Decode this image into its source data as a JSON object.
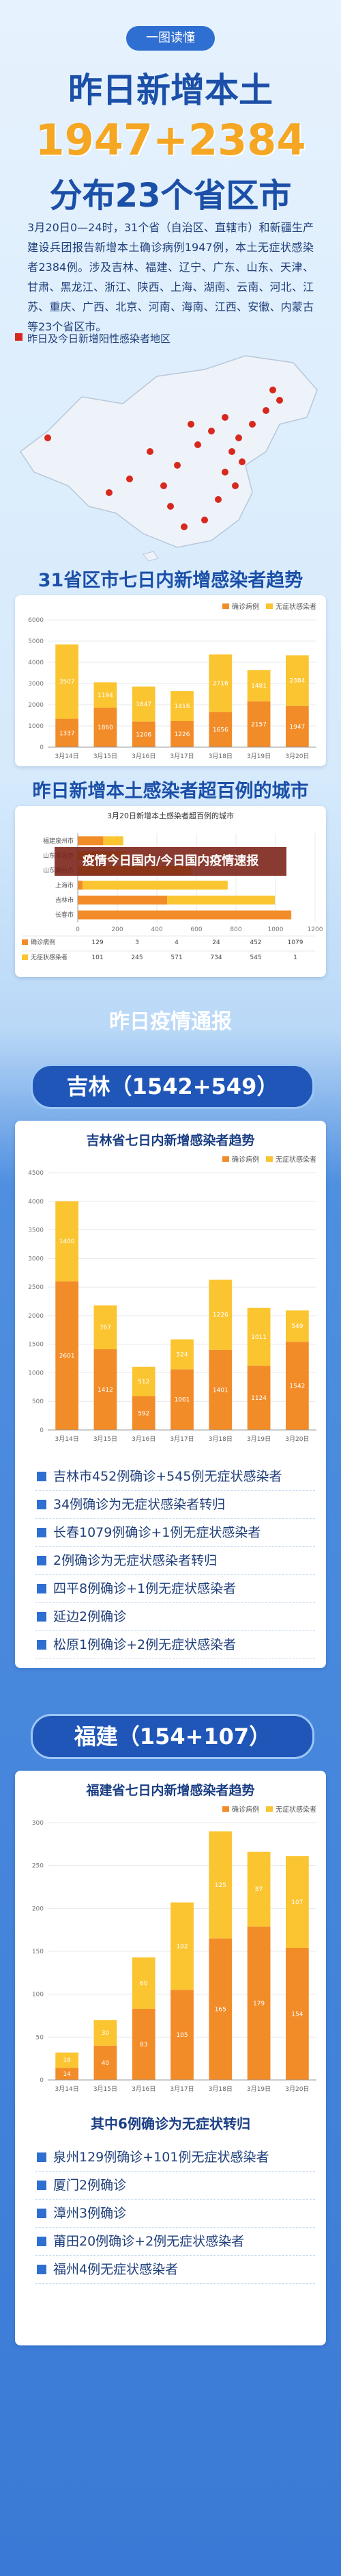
{
  "header": {
    "badge": "一图读懂",
    "title": "昨日新增本土",
    "numbers": "1947+2384",
    "subtitle": "分布23个省区市",
    "summary": "3月20日0—24时，31个省（自治区、直辖市）和新疆生产建设兵团报告新增本土确诊病例1947例，本土无症状感染者2384例。涉及吉林、福建、辽宁、广东、山东、天津、甘肃、黑龙江、浙江、陕西、上海、湖南、云南、河北、江苏、重庆、广西、北京、河南、海南、江西、安徽、内蒙古等23个省区市。"
  },
  "map": {
    "label": "昨日及今日新增阳性感染者地区"
  },
  "sections": {
    "national": "31省区市七日内新增感染者趋势",
    "cities": "昨日新增本土感染者超百例的城市",
    "report": "昨日疫情通报"
  },
  "overlay": "疫情今日国内/今日国内疫情速报",
  "chart_data": [
    {
      "type": "bar",
      "stacked": true,
      "grid": true,
      "categories": [
        "3月14日",
        "3月15日",
        "3月16日",
        "3月17日",
        "3月18日",
        "3月19日",
        "3月20日"
      ],
      "series": [
        {
          "name": "确诊病例",
          "color": "#f28c28",
          "values": [
            1337,
            1860,
            1206,
            1226,
            1656,
            2157,
            1947
          ]
        },
        {
          "name": "无症状感染者",
          "color": "#fbc531",
          "values": [
            3507,
            1194,
            1647,
            1416,
            2716,
            1481,
            2384
          ]
        }
      ],
      "ylim": [
        0,
        6000
      ],
      "yticks": [
        0,
        1000,
        2000,
        3000,
        4000,
        5000,
        6000
      ]
    },
    {
      "type": "hbar",
      "stacked": true,
      "grid": true,
      "title": "3月20日新增本土感染者超百例的城市",
      "categories": [
        "福建泉州市",
        "山东青岛市",
        "山东烟台市",
        "上海市",
        "吉林市",
        "长春市"
      ],
      "series": [
        {
          "name": "确诊病例",
          "color": "#f28c28",
          "values": [
            129,
            3,
            4,
            24,
            452,
            1079
          ]
        },
        {
          "name": "无症状感染者",
          "color": "#fbc531",
          "values": [
            101,
            245,
            571,
            734,
            545,
            1
          ]
        }
      ],
      "xlim": [
        0,
        1200
      ],
      "xticks": [
        0,
        200,
        400,
        600,
        800,
        1000,
        1200
      ]
    },
    {
      "type": "bar",
      "stacked": true,
      "grid": true,
      "title": "吉林省七日内新增感染者趋势",
      "categories": [
        "3月14日",
        "3月15日",
        "3月16日",
        "3月17日",
        "3月18日",
        "3月19日",
        "3月20日"
      ],
      "series": [
        {
          "name": "确诊病例",
          "color": "#f28c28",
          "values": [
            2601,
            1412,
            592,
            1061,
            1401,
            1124,
            1542
          ]
        },
        {
          "name": "无症状感染者",
          "color": "#fbc531",
          "values": [
            1400,
            767,
            512,
            524,
            1226,
            1011,
            549
          ]
        }
      ],
      "ylim": [
        0,
        4500
      ],
      "yticks": [
        0,
        500,
        1000,
        1500,
        2000,
        2500,
        3000,
        3500,
        4000,
        4500
      ]
    },
    {
      "type": "bar",
      "stacked": true,
      "grid": true,
      "title": "福建省七日内新增感染者趋势",
      "categories": [
        "3月14日",
        "3月15日",
        "3月16日",
        "3月17日",
        "3月18日",
        "3月19日",
        "3月20日"
      ],
      "series": [
        {
          "name": "确诊病例",
          "color": "#f28c28",
          "values": [
            14,
            40,
            83,
            105,
            165,
            179,
            154
          ]
        },
        {
          "name": "无症状感染者",
          "color": "#fbc531",
          "values": [
            18,
            30,
            60,
            102,
            125,
            87,
            107
          ]
        }
      ],
      "ylim": [
        0,
        300
      ],
      "yticks": [
        0,
        50,
        100,
        150,
        200,
        250,
        300
      ]
    }
  ],
  "jilin": {
    "heading": "吉林（1542+549）",
    "items": [
      "吉林市452例确诊+545例无症状感染者",
      "34例确诊为无症状感染者转归",
      "长春1079例确诊+1例无症状感染者",
      "2例确诊为无症状感染者转归",
      "四平8例确诊+1例无症状感染者",
      "延边2例确诊",
      "松原1例确诊+2例无症状感染者"
    ]
  },
  "fujian": {
    "heading": "福建（154+107）",
    "note": "其中6例确诊为无症状转归",
    "items": [
      "泉州129例确诊+101例无症状感染者",
      "厦门2例确诊",
      "漳州3例确诊",
      "莆田20例确诊+2例无症状感染者",
      "福州4例无症状感染者"
    ]
  }
}
